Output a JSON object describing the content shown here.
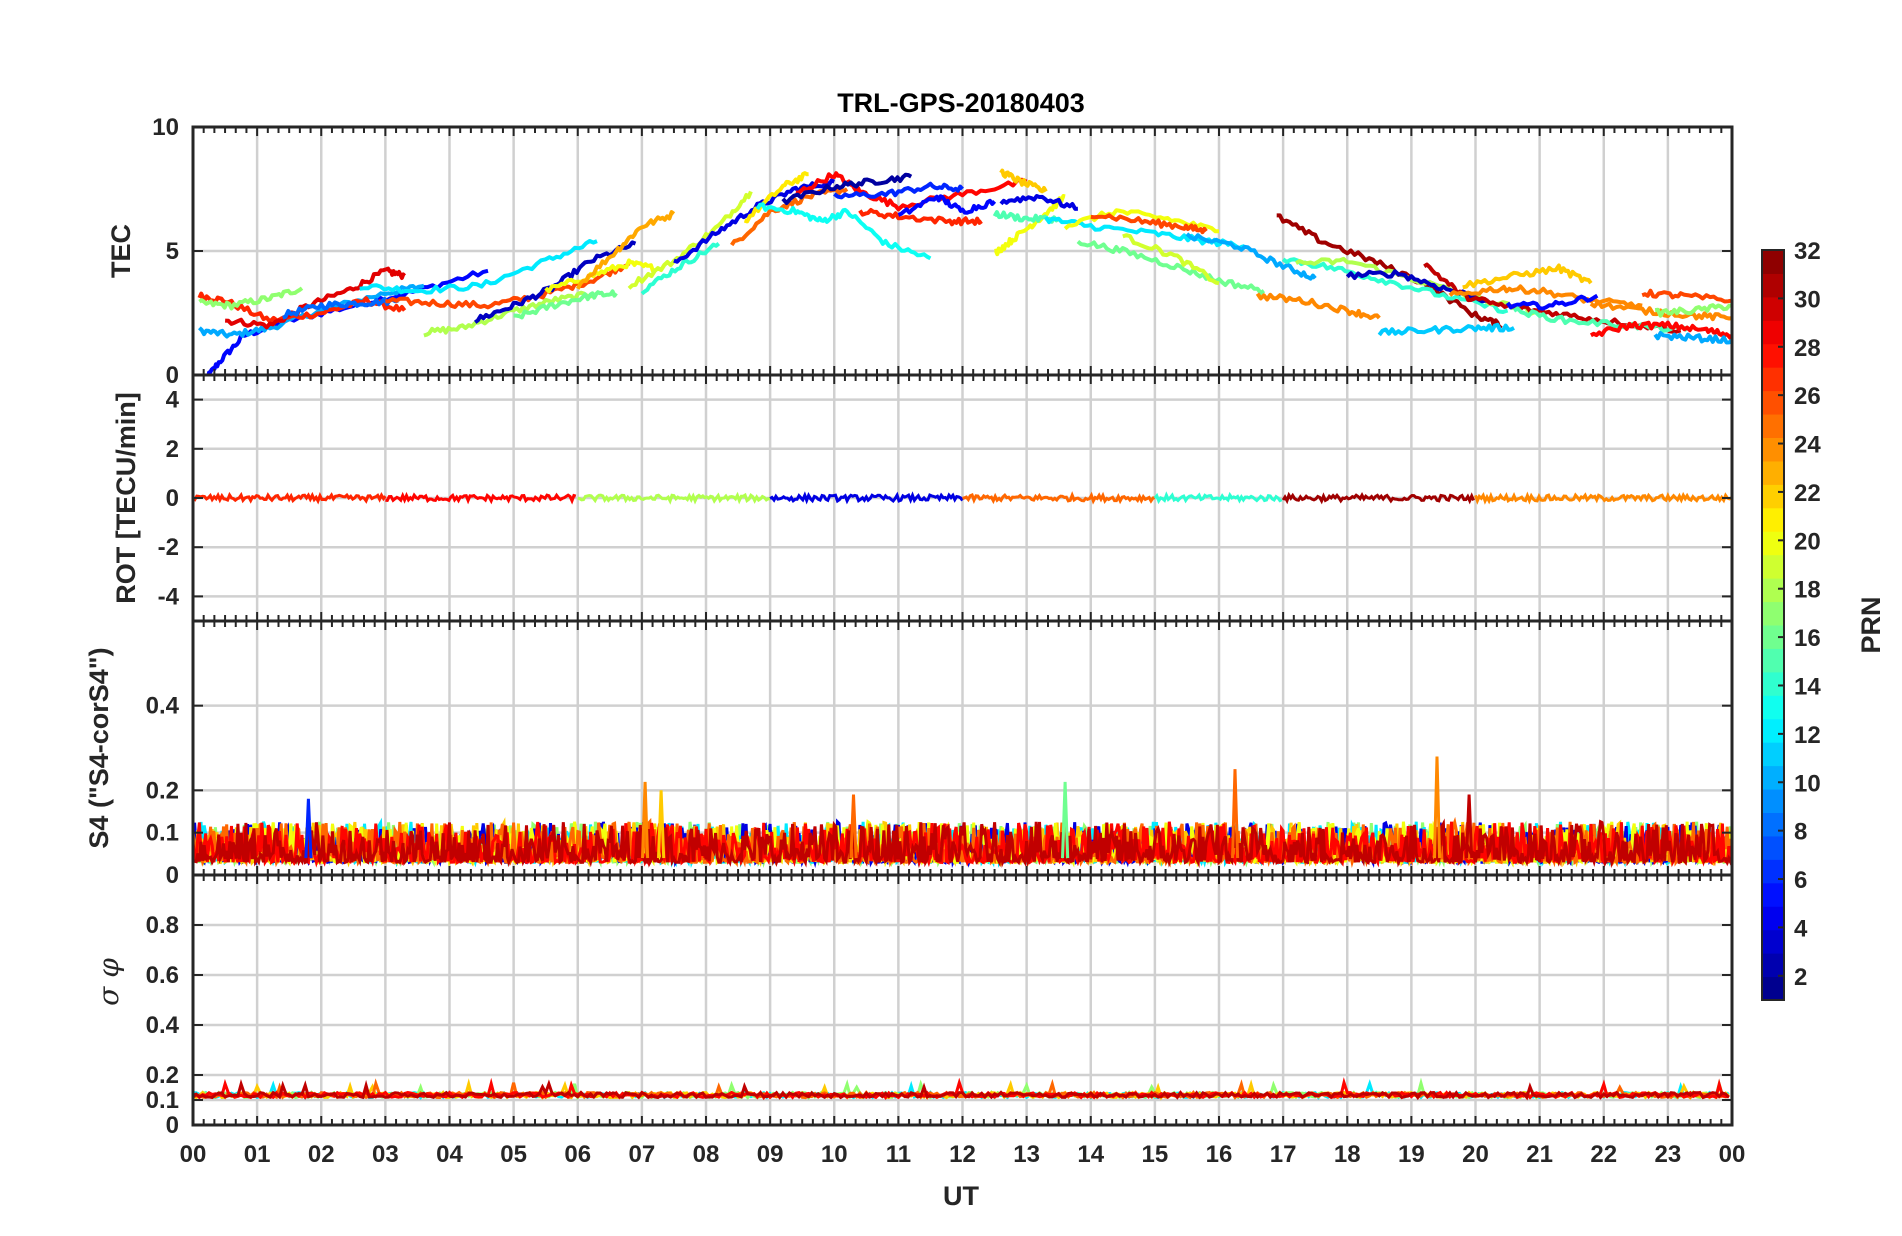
{
  "chart_data": {
    "type": "line",
    "title": "TRL-GPS-20180403",
    "xlabel": "UT",
    "x_ticks": [
      "00",
      "01",
      "02",
      "03",
      "04",
      "05",
      "06",
      "07",
      "08",
      "09",
      "10",
      "11",
      "12",
      "13",
      "14",
      "15",
      "16",
      "17",
      "18",
      "19",
      "20",
      "21",
      "22",
      "23",
      "00"
    ],
    "xlim_hours": [
      0,
      24
    ],
    "panels": [
      {
        "id": "tec",
        "ylabel": "TEC",
        "ylim": [
          0,
          10
        ],
        "y_ticks": [
          "0",
          "5",
          "10"
        ],
        "series": [
          {
            "prn": 5,
            "x": [
              0.1,
              0.4,
              0.8,
              1.5,
              2.5,
              3.5,
              4.6
            ],
            "y": [
              -0.5,
              0.5,
              1.6,
              2.2,
              2.8,
              3.4,
              4.2
            ]
          },
          {
            "prn": 10,
            "x": [
              0.1,
              0.6,
              1.2,
              2.0,
              3.0,
              3.6
            ],
            "y": [
              1.8,
              1.6,
              1.9,
              2.6,
              3.3,
              3.6
            ]
          },
          {
            "prn": 27,
            "x": [
              0.1,
              0.5,
              1.2,
              2.0,
              2.7,
              3.3
            ],
            "y": [
              3.2,
              3.0,
              2.2,
              2.5,
              3.0,
              2.6
            ]
          },
          {
            "prn": 17,
            "x": [
              0.1,
              0.6,
              1.2,
              1.7
            ],
            "y": [
              2.9,
              2.8,
              3.1,
              3.5
            ]
          },
          {
            "prn": 29,
            "x": [
              0.5,
              1.2,
              1.8,
              2.5,
              3.0,
              3.3
            ],
            "y": [
              2.2,
              2.0,
              2.8,
              3.5,
              4.2,
              4.0
            ]
          },
          {
            "prn": 8,
            "x": [
              1.4,
              2.0,
              2.6,
              3.2
            ],
            "y": [
              2.4,
              2.8,
              2.9,
              3.0
            ]
          },
          {
            "prn": 12,
            "x": [
              2.6,
              3.5,
              4.5,
              5.5,
              6.3
            ],
            "y": [
              3.6,
              3.4,
              3.6,
              4.6,
              5.4
            ]
          },
          {
            "prn": 26,
            "x": [
              3.0,
              3.8,
              4.6,
              5.4,
              6.2,
              6.8
            ],
            "y": [
              3.0,
              2.9,
              2.8,
              3.2,
              3.8,
              4.5
            ]
          },
          {
            "prn": 18,
            "x": [
              3.6,
              4.2,
              4.9,
              5.6,
              6.3
            ],
            "y": [
              1.7,
              1.9,
              2.5,
              3.0,
              3.3
            ]
          },
          {
            "prn": 3,
            "x": [
              4.4,
              5.0,
              5.6,
              6.2,
              6.9
            ],
            "y": [
              2.2,
              2.8,
              3.5,
              4.6,
              5.3
            ]
          },
          {
            "prn": 16,
            "x": [
              5.0,
              5.6,
              6.2,
              6.6
            ],
            "y": [
              2.3,
              2.8,
              3.2,
              3.3
            ]
          },
          {
            "prn": 20,
            "x": [
              5.5,
              6.2,
              6.8,
              7.2
            ],
            "y": [
              3.4,
              4.0,
              4.5,
              4.3
            ]
          },
          {
            "prn": 23,
            "x": [
              6.0,
              6.6,
              7.0,
              7.5
            ],
            "y": [
              3.6,
              5.0,
              6.0,
              6.5
            ]
          },
          {
            "prn": 19,
            "x": [
              6.8,
              7.5,
              8.2,
              8.7
            ],
            "y": [
              3.6,
              4.6,
              6.0,
              7.4
            ]
          },
          {
            "prn": 14,
            "x": [
              7.0,
              7.6,
              8.2
            ],
            "y": [
              3.4,
              4.4,
              5.3
            ]
          },
          {
            "prn": 4,
            "x": [
              7.5,
              8.2,
              8.8,
              9.4,
              10.0
            ],
            "y": [
              4.5,
              5.8,
              6.8,
              7.5,
              7.8
            ]
          },
          {
            "prn": 25,
            "x": [
              8.4,
              9.0,
              9.6,
              10.2
            ],
            "y": [
              5.2,
              6.6,
              7.2,
              7.5
            ]
          },
          {
            "prn": 21,
            "x": [
              8.6,
              9.2,
              9.6
            ],
            "y": [
              6.2,
              7.6,
              8.1
            ]
          },
          {
            "prn": 13,
            "x": [
              8.8,
              9.4,
              9.8,
              10.2,
              10.8,
              11.5
            ],
            "y": [
              6.8,
              6.6,
              6.2,
              6.6,
              5.3,
              4.7
            ]
          },
          {
            "prn": 28,
            "x": [
              9.4,
              10.0,
              10.4,
              11.0,
              12.0,
              13.0
            ],
            "y": [
              7.3,
              8.1,
              7.4,
              6.8,
              7.3,
              7.8
            ]
          },
          {
            "prn": 6,
            "x": [
              10.0,
              10.8,
              11.5,
              12.0
            ],
            "y": [
              7.2,
              7.3,
              7.6,
              7.5
            ]
          },
          {
            "prn": 2,
            "x": [
              9.2,
              10.0,
              10.6,
              11.2
            ],
            "y": [
              7.0,
              7.6,
              7.8,
              8.0
            ]
          },
          {
            "prn": 27,
            "x": [
              10.4,
              11.0,
              11.8,
              12.3
            ],
            "y": [
              6.6,
              6.4,
              6.2,
              6.2
            ]
          },
          {
            "prn": 5,
            "x": [
              11.0,
              11.6,
              12.0,
              12.5
            ],
            "y": [
              6.4,
              7.2,
              6.6,
              7.0
            ]
          },
          {
            "prn": 20,
            "x": [
              12.5,
              12.8,
              13.2,
              13.6
            ],
            "y": [
              4.9,
              5.5,
              6.3,
              7.2
            ]
          },
          {
            "prn": 22,
            "x": [
              12.6,
              12.9,
              13.3
            ],
            "y": [
              8.2,
              7.8,
              7.4
            ]
          },
          {
            "prn": 4,
            "x": [
              12.6,
              13.2,
              13.8
            ],
            "y": [
              7.0,
              7.2,
              6.7
            ]
          },
          {
            "prn": 15,
            "x": [
              12.5,
              13.0,
              13.5
            ],
            "y": [
              6.5,
              6.3,
              6.3
            ]
          },
          {
            "prn": 12,
            "x": [
              13.3,
              14.0,
              15.0,
              15.8,
              16.4
            ],
            "y": [
              6.3,
              6.0,
              5.7,
              5.4,
              5.2
            ]
          },
          {
            "prn": 20,
            "x": [
              13.6,
              14.4,
              15.2,
              16.0
            ],
            "y": [
              6.0,
              6.6,
              6.3,
              5.8
            ]
          },
          {
            "prn": 26,
            "x": [
              14.0,
              14.8,
              15.4,
              15.8
            ],
            "y": [
              6.5,
              6.2,
              6.0,
              5.8
            ]
          },
          {
            "prn": 16,
            "x": [
              13.8,
              14.5,
              15.3,
              16.0,
              16.7
            ],
            "y": [
              5.4,
              5.0,
              4.4,
              3.8,
              3.4
            ]
          },
          {
            "prn": 19,
            "x": [
              14.5,
              15.3,
              16.0
            ],
            "y": [
              5.6,
              4.8,
              3.7
            ]
          },
          {
            "prn": 10,
            "x": [
              15.5,
              16.3,
              17.0,
              17.5
            ],
            "y": [
              5.6,
              5.2,
              4.4,
              3.9
            ]
          },
          {
            "prn": 24,
            "x": [
              16.6,
              17.3,
              18.0,
              18.5
            ],
            "y": [
              3.2,
              3.0,
              2.6,
              2.3
            ]
          },
          {
            "prn": 31,
            "x": [
              16.9,
              17.6,
              18.4,
              19.2,
              20.0,
              20.4
            ],
            "y": [
              6.4,
              5.4,
              4.6,
              3.7,
              2.4,
              2.0
            ]
          },
          {
            "prn": 14,
            "x": [
              17.0,
              17.8,
              18.6,
              19.5,
              20.5
            ],
            "y": [
              4.7,
              4.3,
              3.8,
              3.2,
              2.6
            ]
          },
          {
            "prn": 18,
            "x": [
              17.2,
              18.0,
              19.0,
              20.0,
              21.0
            ],
            "y": [
              4.5,
              4.6,
              3.9,
              3.1,
              2.5
            ]
          },
          {
            "prn": 3,
            "x": [
              18.0,
              18.8,
              19.5,
              20.2
            ],
            "y": [
              4.0,
              4.1,
              3.5,
              3.0
            ]
          },
          {
            "prn": 11,
            "x": [
              18.5,
              19.2,
              20.0,
              20.6
            ],
            "y": [
              1.7,
              1.8,
              1.9,
              1.9
            ]
          },
          {
            "prn": 30,
            "x": [
              19.2,
              19.8,
              20.4,
              21.2,
              22.0,
              23.2
            ],
            "y": [
              4.5,
              3.2,
              2.8,
              2.5,
              2.2,
              1.8
            ]
          },
          {
            "prn": 22,
            "x": [
              19.8,
              20.6,
              21.3,
              21.8
            ],
            "y": [
              3.6,
              4.0,
              4.3,
              3.7
            ]
          },
          {
            "prn": 24,
            "x": [
              19.6,
              20.4,
              21.0,
              21.8,
              22.6
            ],
            "y": [
              3.2,
              3.5,
              3.4,
              3.0,
              2.8
            ]
          },
          {
            "prn": 5,
            "x": [
              20.5,
              21.2,
              21.9
            ],
            "y": [
              2.8,
              2.8,
              3.2
            ]
          },
          {
            "prn": 15,
            "x": [
              20.6,
              21.4,
              22.4,
              23.3
            ],
            "y": [
              2.6,
              2.2,
              2.0,
              1.8
            ]
          },
          {
            "prn": 28,
            "x": [
              21.8,
              22.4,
              23.0,
              23.6,
              24.0
            ],
            "y": [
              1.6,
              2.0,
              2.0,
              1.8,
              1.6
            ]
          },
          {
            "prn": 24,
            "x": [
              21.8,
              22.6,
              23.4,
              24.0
            ],
            "y": [
              2.9,
              2.6,
              2.4,
              2.3
            ]
          },
          {
            "prn": 26,
            "x": [
              22.6,
              23.2,
              24.0
            ],
            "y": [
              3.3,
              3.2,
              3.0
            ]
          },
          {
            "prn": 10,
            "x": [
              22.8,
              23.4,
              24.0
            ],
            "y": [
              1.6,
              1.5,
              1.4
            ]
          },
          {
            "prn": 17,
            "x": [
              22.8,
              23.4,
              24.0
            ],
            "y": [
              2.5,
              2.6,
              2.8
            ]
          }
        ]
      },
      {
        "id": "rot",
        "ylabel": "ROT [TECU/min]",
        "ylim": [
          -5,
          5
        ],
        "y_ticks": [
          "-4",
          "-2",
          "0",
          "2",
          "4"
        ],
        "level": 0.0,
        "noise": 0.12
      },
      {
        "id": "s4",
        "ylabel": "S4 (\"S4-corS4\")",
        "ylim": [
          0,
          0.6
        ],
        "y_ticks": [
          "0",
          "0.1",
          "0.2",
          "0.4"
        ],
        "baseline": 0.03,
        "noise": 0.06,
        "spikes": [
          {
            "x": 7.05,
            "y": 0.22,
            "prn": 24
          },
          {
            "x": 16.25,
            "y": 0.25,
            "prn": 25
          },
          {
            "x": 19.4,
            "y": 0.28,
            "prn": 24
          },
          {
            "x": 13.6,
            "y": 0.22,
            "prn": 16
          },
          {
            "x": 10.3,
            "y": 0.19,
            "prn": 25
          },
          {
            "x": 7.3,
            "y": 0.2,
            "prn": 22
          },
          {
            "x": 1.8,
            "y": 0.18,
            "prn": 6
          },
          {
            "x": 19.9,
            "y": 0.19,
            "prn": 30
          }
        ]
      },
      {
        "id": "sigphi",
        "ylabel": "σ φ",
        "ylim": [
          0,
          1
        ],
        "y_ticks": [
          "0",
          "0.1",
          "0.2",
          "0.4",
          "0.6",
          "0.8"
        ],
        "baseline": 0.12,
        "noise": 0.02
      }
    ],
    "colorbar": {
      "label": "PRN",
      "range": [
        1,
        32
      ],
      "ticks": [
        "2",
        "4",
        "6",
        "8",
        "10",
        "12",
        "14",
        "16",
        "18",
        "20",
        "22",
        "24",
        "26",
        "28",
        "30",
        "32"
      ],
      "colormap": "jet"
    }
  }
}
